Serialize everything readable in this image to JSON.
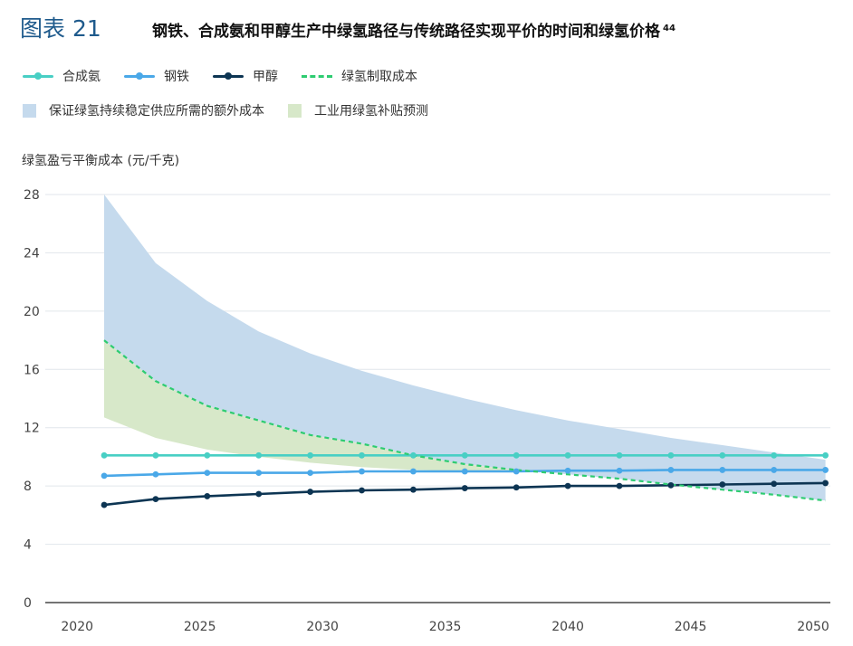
{
  "figure": {
    "label": "图表 21",
    "title": "钢铁、合成氨和甲醇生产中绿氢路径与传统路径实现平价的时间和绿氢价格",
    "title_footnote": "44"
  },
  "colors": {
    "ammonia": "#48cfc4",
    "steel": "#4aa8e8",
    "methanol": "#0d3553",
    "green_h2_cost": "#2ecc71",
    "band_blue": "#c5daed",
    "band_green": "#d7e8c9",
    "grid": "#e1e6eb",
    "axis_text": "#444444"
  },
  "legend": {
    "ammonia": "合成氨",
    "steel": "钢铁",
    "methanol": "甲醇",
    "green_h2_cost": "绿氢制取成本",
    "band_blue": "保证绿氢持续稳定供应所需的额外成本",
    "band_green": "工业用绿氢补贴预测"
  },
  "chart_data": {
    "type": "line",
    "title": "钢铁、合成氨和甲醇生产中绿氢路径与传统路径实现平价的时间和绿氢价格",
    "ylabel": "绿氢盈亏平衡成本 (元/千克)",
    "xlabel": "",
    "xlim": [
      2018.7,
      2050.7
    ],
    "ylim": [
      0,
      28
    ],
    "yticks": [
      0,
      4,
      8,
      12,
      16,
      20,
      24,
      28
    ],
    "ytick_labels": [
      "0",
      "4",
      "8",
      "12",
      "16",
      "20",
      "24",
      "28"
    ],
    "xticks": [
      2020,
      2025,
      2030,
      2035,
      2040,
      2045,
      2050
    ],
    "xtick_labels": [
      "2020",
      "2025",
      "2030",
      "2035",
      "2040",
      "2045",
      "2050"
    ],
    "grid": true,
    "series": [
      {
        "name": "合成氨",
        "key": "ammonia",
        "style": "line-marker",
        "x": [
          2021.1,
          2023.2,
          2025.3,
          2027.4,
          2029.5,
          2031.6,
          2033.7,
          2035.8,
          2037.9,
          2040.0,
          2042.1,
          2044.2,
          2046.3,
          2048.4,
          2050.5
        ],
        "y": [
          10.1,
          10.1,
          10.1,
          10.1,
          10.1,
          10.1,
          10.1,
          10.1,
          10.1,
          10.1,
          10.1,
          10.1,
          10.1,
          10.1,
          10.1
        ]
      },
      {
        "name": "钢铁",
        "key": "steel",
        "style": "line-marker",
        "x": [
          2021.1,
          2023.2,
          2025.3,
          2027.4,
          2029.5,
          2031.6,
          2033.7,
          2035.8,
          2037.9,
          2040.0,
          2042.1,
          2044.2,
          2046.3,
          2048.4,
          2050.5
        ],
        "y": [
          8.7,
          8.8,
          8.9,
          8.9,
          8.9,
          9.0,
          9.0,
          9.0,
          9.0,
          9.05,
          9.05,
          9.1,
          9.1,
          9.1,
          9.1
        ]
      },
      {
        "name": "甲醇",
        "key": "methanol",
        "style": "line-marker",
        "x": [
          2021.1,
          2023.2,
          2025.3,
          2027.4,
          2029.5,
          2031.6,
          2033.7,
          2035.8,
          2037.9,
          2040.0,
          2042.1,
          2044.2,
          2046.3,
          2048.4,
          2050.5
        ],
        "y": [
          6.7,
          7.1,
          7.3,
          7.45,
          7.6,
          7.7,
          7.75,
          7.85,
          7.9,
          8.0,
          8.0,
          8.05,
          8.1,
          8.15,
          8.2
        ]
      },
      {
        "name": "绿氢制取成本",
        "key": "green_h2_cost",
        "style": "dashed",
        "x": [
          2021.1,
          2023.2,
          2025.3,
          2027.4,
          2029.5,
          2031.6,
          2033.7,
          2035.8,
          2037.9,
          2040.0,
          2042.1,
          2044.2,
          2046.3,
          2048.4,
          2050.5
        ],
        "y": [
          18.0,
          15.2,
          13.5,
          12.5,
          11.5,
          10.9,
          10.1,
          9.5,
          9.1,
          8.8,
          8.5,
          8.1,
          7.75,
          7.4,
          7.0
        ]
      }
    ],
    "bands": [
      {
        "name": "保证绿氢持续稳定供应所需的额外成本",
        "key": "band_blue",
        "x": [
          2021.1,
          2023.2,
          2025.3,
          2027.4,
          2029.5,
          2031.6,
          2033.7,
          2035.8,
          2037.9,
          2040.0,
          2042.1,
          2044.2,
          2046.3,
          2048.4,
          2050.5
        ],
        "upper": [
          28.0,
          23.3,
          20.7,
          18.6,
          17.1,
          15.9,
          14.9,
          14.0,
          13.2,
          12.5,
          11.9,
          11.3,
          10.8,
          10.3,
          9.8
        ],
        "lower": [
          18.0,
          15.2,
          13.5,
          12.5,
          11.5,
          10.9,
          10.1,
          9.5,
          9.1,
          8.8,
          8.5,
          8.1,
          7.75,
          7.4,
          7.0
        ]
      },
      {
        "name": "工业用绿氢补贴预测",
        "key": "band_green",
        "x": [
          2021.1,
          2023.2,
          2025.3,
          2027.4,
          2029.5,
          2031.6,
          2033.7,
          2035.8,
          2037.9
        ],
        "upper": [
          18.0,
          15.2,
          13.5,
          12.5,
          11.5,
          10.9,
          10.1,
          9.5,
          9.1
        ],
        "lower": [
          12.7,
          11.3,
          10.5,
          10.0,
          9.6,
          9.3,
          9.1,
          9.0,
          9.0
        ]
      }
    ]
  }
}
